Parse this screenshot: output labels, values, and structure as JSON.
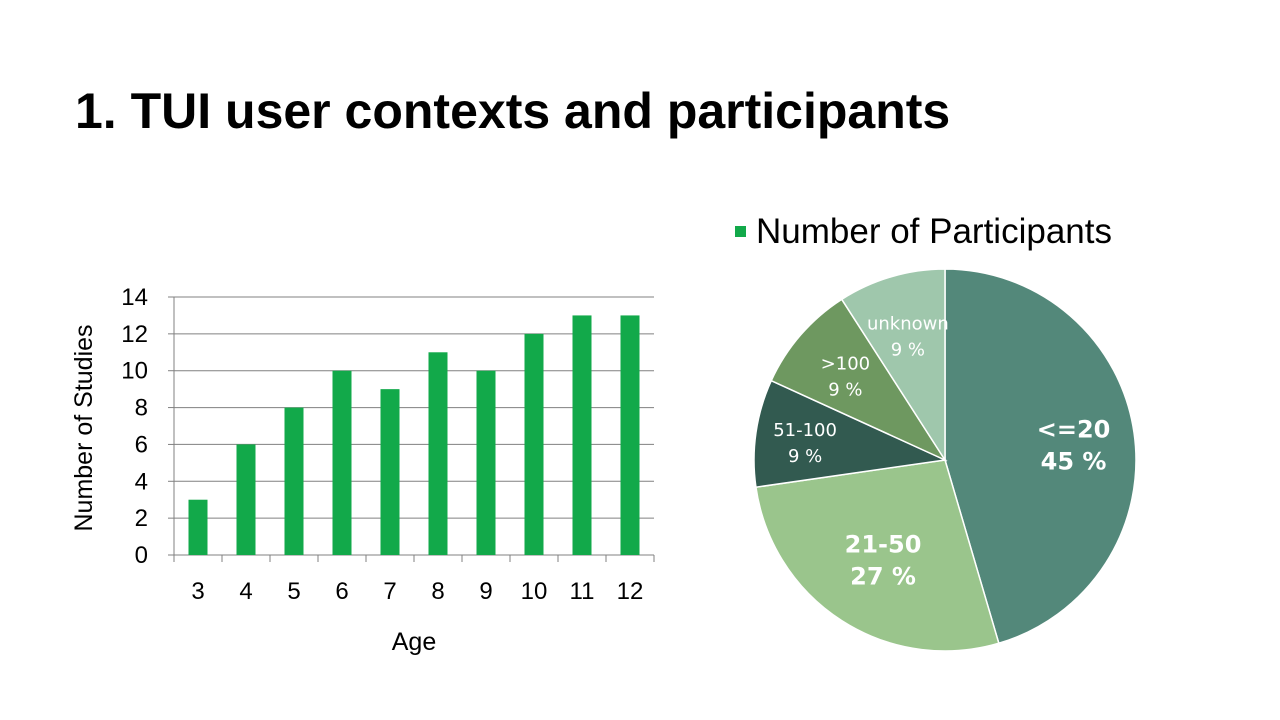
{
  "slide": {
    "title": "1. TUI user contexts and participants"
  },
  "colors": {
    "bar": "#12a94a",
    "gridline": "#808080",
    "pie_slices": [
      "#53887a",
      "#9ac58c",
      "#325a50",
      "#6e9860",
      "#9fc7ac"
    ]
  },
  "chart_data": [
    {
      "type": "bar",
      "categories": [
        "3",
        "4",
        "5",
        "6",
        "7",
        "8",
        "9",
        "10",
        "11",
        "12"
      ],
      "values": [
        3,
        6,
        8,
        10,
        9,
        11,
        10,
        12,
        13,
        13
      ],
      "xlabel": "Age",
      "ylabel": "Number of Studies",
      "ylim": [
        0,
        14
      ],
      "yticks": [
        "0",
        "2",
        "4",
        "6",
        "8",
        "10",
        "12",
        "14"
      ],
      "grid": true
    },
    {
      "type": "pie",
      "legend": "Number of Participants",
      "legend_position": "top",
      "slices": [
        {
          "label": "<=20",
          "percent_label": "45 %",
          "value": 45
        },
        {
          "label": "21-50",
          "percent_label": "27 %",
          "value": 27
        },
        {
          "label": "51-100",
          "percent_label": "9 %",
          "value": 9
        },
        {
          "label": ">100",
          "percent_label": "9 %",
          "value": 9
        },
        {
          "label": "unknown",
          "percent_label": "9 %",
          "value": 9
        }
      ]
    }
  ]
}
